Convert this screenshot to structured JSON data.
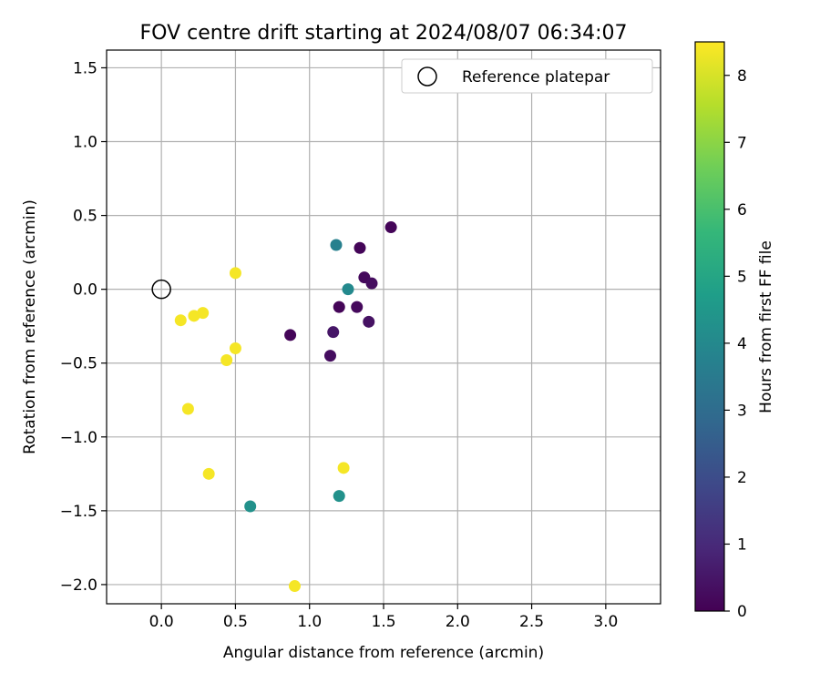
{
  "chart_data": {
    "type": "scatter",
    "title": "FOV centre drift starting at 2024/08/07 06:34:07",
    "xlabel": "Angular distance from reference (arcmin)",
    "ylabel": "Rotation from reference (arcmin)",
    "xlim": [
      -0.37,
      3.37
    ],
    "ylim": [
      -2.13,
      1.62
    ],
    "x_ticks": [
      0.0,
      0.5,
      1.0,
      1.5,
      2.0,
      2.5,
      3.0
    ],
    "x_tick_labels": [
      "0.0",
      "0.5",
      "1.0",
      "1.5",
      "2.0",
      "2.5",
      "3.0"
    ],
    "y_ticks": [
      1.5,
      1.0,
      0.5,
      0.0,
      -0.5,
      -1.0,
      -1.5,
      -2.0
    ],
    "y_tick_labels": [
      "1.5",
      "1.0",
      "0.5",
      "0.0",
      "−0.5",
      "−1.0",
      "−1.5",
      "−2.0"
    ],
    "grid": true,
    "legend": {
      "placement": "top-right",
      "entries": [
        "Reference platepar"
      ]
    },
    "reference": {
      "x": 0.0,
      "y": 0.0
    },
    "colorbar": {
      "label": "Hours from first FF file",
      "range": [
        0,
        8.5
      ],
      "ticks": [
        0,
        1,
        2,
        3,
        4,
        5,
        6,
        7,
        8
      ],
      "tick_labels": [
        "0",
        "1",
        "2",
        "3",
        "4",
        "5",
        "6",
        "7",
        "8"
      ],
      "colormap_stops": [
        "#440154",
        "#482878",
        "#3e4989",
        "#31688e",
        "#26828e",
        "#1f9e89",
        "#35b779",
        "#6ece58",
        "#b5de2b",
        "#fde725"
      ]
    },
    "points": [
      {
        "x": 1.55,
        "y": 0.42,
        "hours": 0.1
      },
      {
        "x": 1.34,
        "y": 0.28,
        "hours": 0.1
      },
      {
        "x": 1.37,
        "y": 0.08,
        "hours": 0.2
      },
      {
        "x": 1.42,
        "y": 0.04,
        "hours": 0.3
      },
      {
        "x": 1.2,
        "y": -0.12,
        "hours": 0.1
      },
      {
        "x": 1.32,
        "y": -0.12,
        "hours": 0.2
      },
      {
        "x": 1.4,
        "y": -0.22,
        "hours": 0.4
      },
      {
        "x": 1.16,
        "y": -0.29,
        "hours": 0.5
      },
      {
        "x": 0.87,
        "y": -0.31,
        "hours": 0.1
      },
      {
        "x": 1.14,
        "y": -0.45,
        "hours": 0.3
      },
      {
        "x": 1.18,
        "y": 0.3,
        "hours": 3.7
      },
      {
        "x": 1.26,
        "y": 0.0,
        "hours": 4.0
      },
      {
        "x": 1.2,
        "y": -1.4,
        "hours": 4.3
      },
      {
        "x": 0.6,
        "y": -1.47,
        "hours": 4.3
      },
      {
        "x": 0.5,
        "y": 0.11,
        "hours": 8.4
      },
      {
        "x": 0.28,
        "y": -0.16,
        "hours": 8.4
      },
      {
        "x": 0.22,
        "y": -0.18,
        "hours": 8.4
      },
      {
        "x": 0.13,
        "y": -0.21,
        "hours": 8.4
      },
      {
        "x": 0.5,
        "y": -0.4,
        "hours": 8.4
      },
      {
        "x": 0.44,
        "y": -0.48,
        "hours": 8.4
      },
      {
        "x": 0.18,
        "y": -0.81,
        "hours": 8.4
      },
      {
        "x": 0.32,
        "y": -1.25,
        "hours": 8.4
      },
      {
        "x": 1.23,
        "y": -1.21,
        "hours": 8.4
      },
      {
        "x": 0.9,
        "y": -2.01,
        "hours": 8.4
      }
    ]
  }
}
